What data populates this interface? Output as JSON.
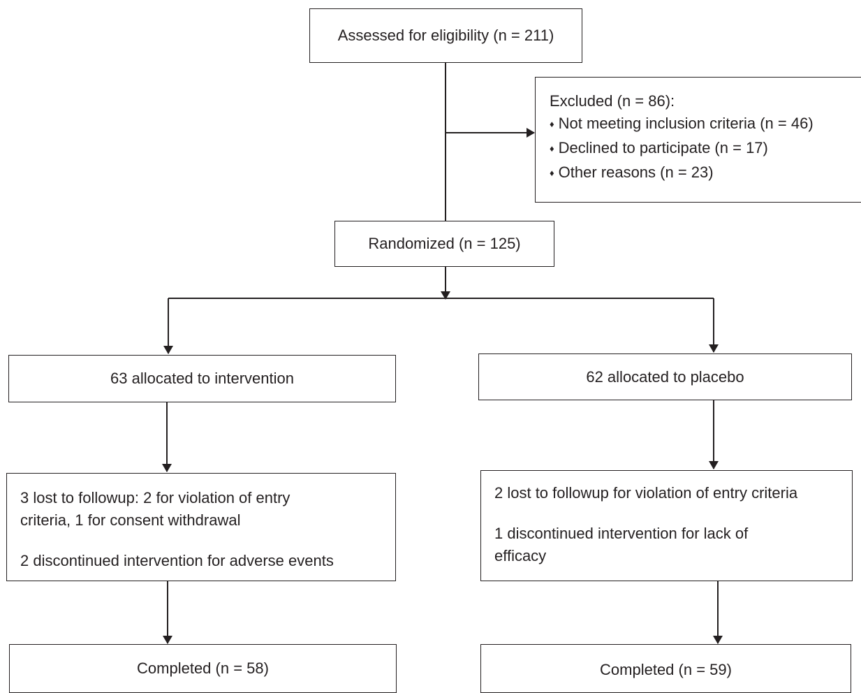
{
  "assessed": {
    "text": "Assessed for eligibility (n = 211)"
  },
  "excluded": {
    "title": "Excluded (n = 86):",
    "bullet_glyph": "♦",
    "items": [
      "Not meeting inclusion criteria (n = 46)",
      "Declined to participate (n = 17)",
      "Other reasons (n = 23)"
    ]
  },
  "randomized": {
    "text": "Randomized (n = 125)"
  },
  "intervention": {
    "allocated": "63 allocated to intervention",
    "lost_lines": [
      "3 lost to followup: 2 for violation of entry",
      "criteria, 1 for consent withdrawal"
    ],
    "discontinued": "2 discontinued intervention for adverse events",
    "completed": "Completed (n = 58)"
  },
  "placebo": {
    "allocated": "62 allocated to placebo",
    "lost": "2 lost to followup for violation of entry criteria",
    "discontinued_lines": [
      "1 discontinued intervention for lack of",
      "efficacy"
    ],
    "completed": "Completed (n = 59)"
  }
}
